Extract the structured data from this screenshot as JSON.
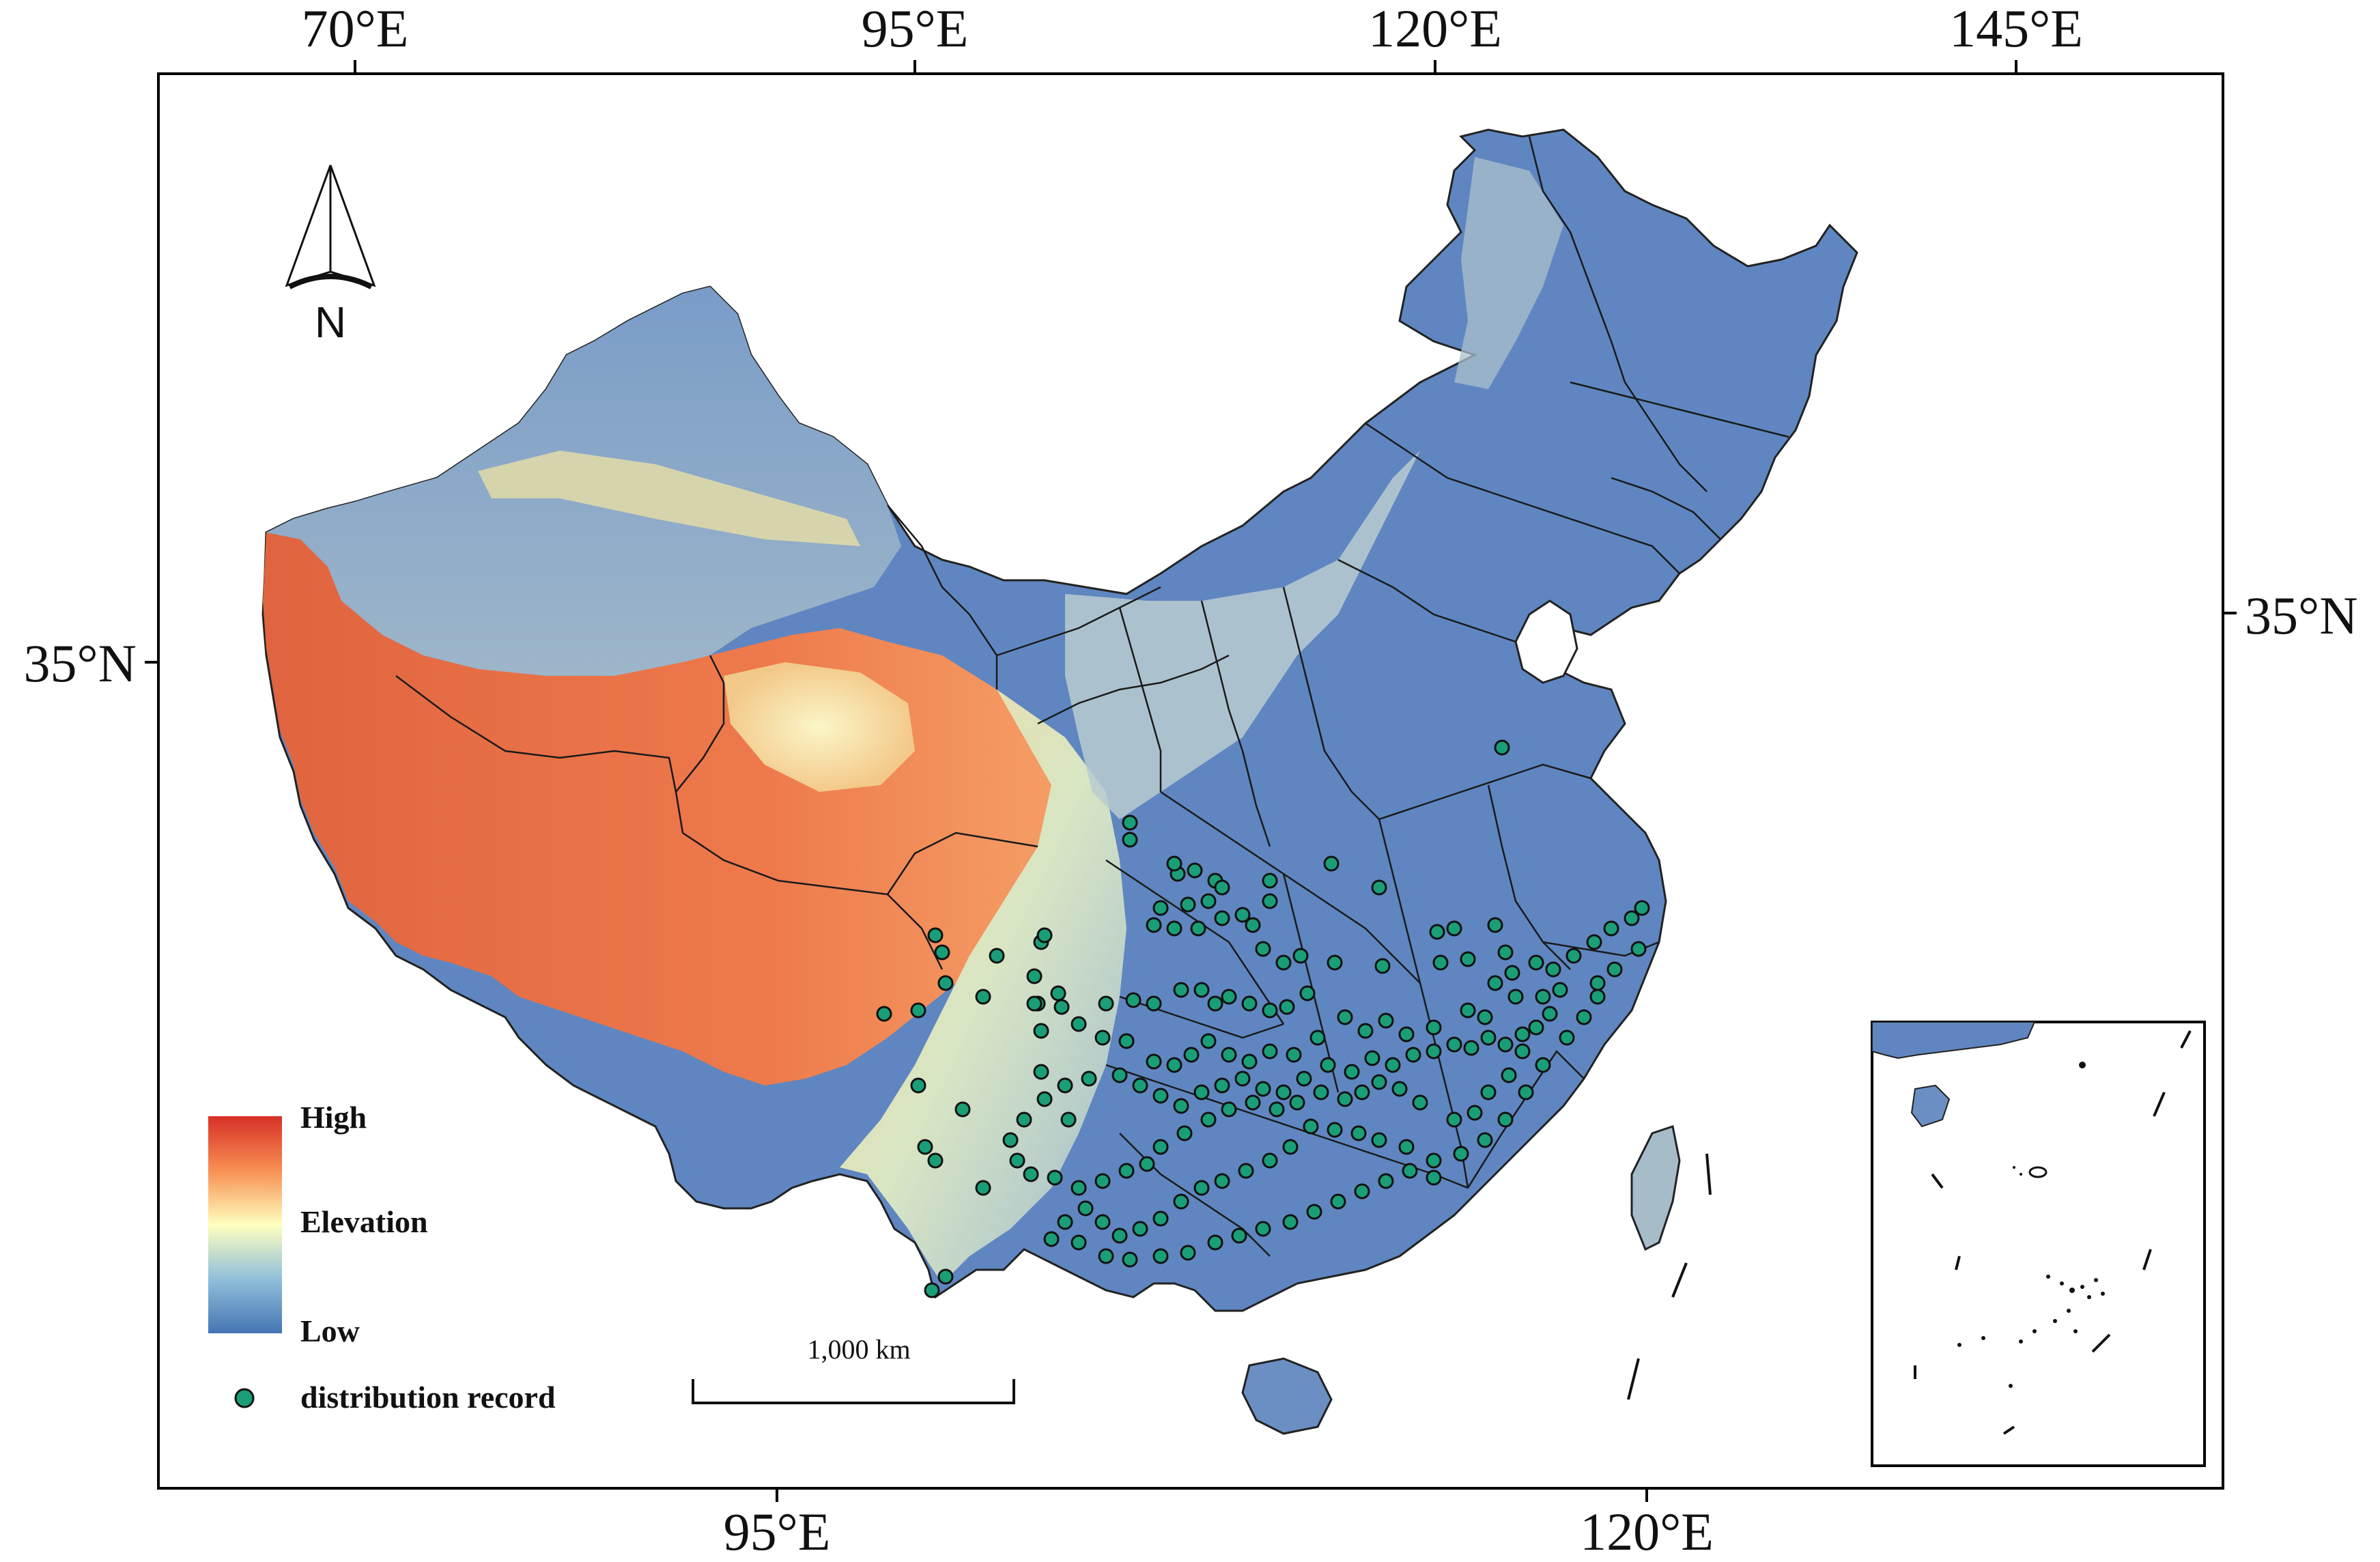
{
  "graticule": {
    "top_labels": [
      "70°E",
      "95°E",
      "120°E",
      "145°E"
    ],
    "bottom_labels": [
      "95°E",
      "120°E"
    ],
    "left_labels": [
      "35°N"
    ],
    "right_labels": [
      "35°N"
    ]
  },
  "north_arrow": {
    "label": "N"
  },
  "legend": {
    "high_label": "High",
    "title_label": "Elevation",
    "low_label": "Low",
    "record_label": "distribution record",
    "ramp_colors": [
      "#d73027",
      "#f46d43",
      "#fdae61",
      "#fee090",
      "#ffffbf",
      "#e0f3f8",
      "#abd9e9",
      "#74add1",
      "#4575b4"
    ],
    "record_color": "#1a9e77"
  },
  "scale_bar": {
    "label": "1,000 km"
  },
  "inset": {
    "name": "South China Sea inset"
  },
  "colors": {
    "frame": "#000000",
    "water": "#ffffff",
    "boundary": "#1a1a1a",
    "point_fill": "#1a9e77"
  }
}
